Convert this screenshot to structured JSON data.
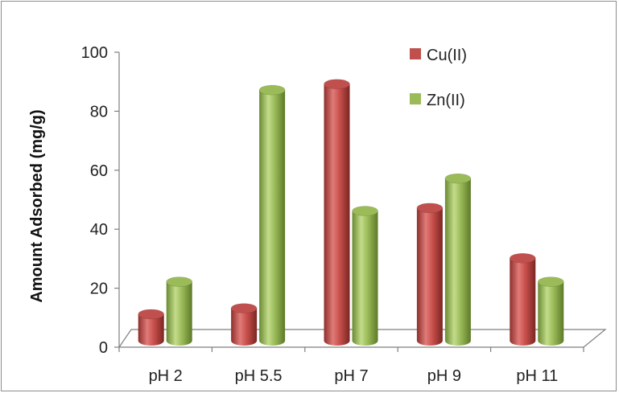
{
  "chart_data": {
    "type": "bar",
    "style": "3d-cylinder",
    "categories": [
      "pH 2",
      "pH 5.5",
      "pH 7",
      "pH 9",
      "pH 11"
    ],
    "series": [
      {
        "name": "Cu(II)",
        "values": [
          9,
          11,
          87,
          45,
          28
        ],
        "color": "#c0504d"
      },
      {
        "name": "Zn(II)",
        "values": [
          20,
          85,
          44,
          55,
          20
        ],
        "color": "#9bbb59"
      }
    ],
    "ylabel": "Amount Adsorbed (mg/g)",
    "xlabel": "",
    "title": "",
    "ylim": [
      0,
      100
    ],
    "yticks": [
      "0",
      "20",
      "40",
      "60",
      "80",
      "100"
    ],
    "grid": false,
    "legend": "top-right"
  }
}
